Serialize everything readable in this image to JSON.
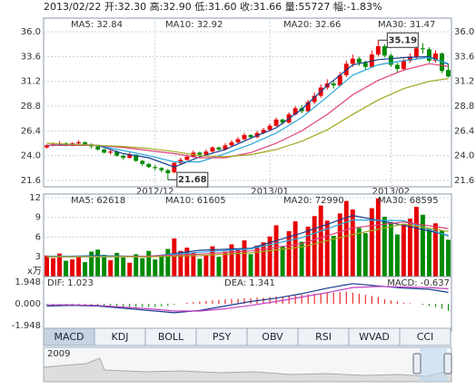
{
  "header": "2013/02/22 开:32.30 高:32.90 低:31.60 收:31.66 量:55727 幅:-1.83%",
  "chart_data": [
    {
      "type": "candlestick",
      "categories": [
        null,
        null,
        null,
        null,
        null,
        null,
        null,
        null,
        null,
        null,
        null,
        null,
        null,
        null,
        null,
        null,
        null,
        "2012/12",
        null,
        null,
        null,
        null,
        null,
        null,
        null,
        null,
        null,
        null,
        null,
        null,
        null,
        null,
        null,
        null,
        null,
        "2013/01",
        null,
        null,
        null,
        null,
        null,
        null,
        null,
        null,
        null,
        null,
        null,
        null,
        null,
        null,
        null,
        null,
        null,
        null,
        "2013/02",
        null,
        null,
        null,
        null,
        null,
        null,
        null,
        null,
        null
      ],
      "open": [
        24.8,
        25.0,
        25.1,
        25.2,
        25.0,
        25.2,
        25.3,
        25.1,
        24.9,
        24.6,
        24.3,
        24.4,
        24.0,
        23.8,
        24.1,
        23.5,
        23.2,
        22.9,
        22.8,
        22.6,
        22.4,
        23.3,
        23.6,
        23.9,
        24.3,
        24.1,
        24.4,
        24.8,
        24.6,
        25.0,
        25.3,
        25.6,
        26.0,
        25.8,
        26.2,
        26.5,
        26.9,
        27.5,
        27.2,
        28.0,
        28.6,
        28.3,
        29.2,
        29.8,
        30.6,
        31.0,
        30.8,
        31.8,
        32.9,
        33.4,
        33.0,
        32.6,
        33.8,
        34.6,
        33.7,
        32.8,
        32.4,
        33.2,
        33.6,
        34.4,
        34.3,
        33.2,
        33.9,
        32.3
      ],
      "high": [
        25.1,
        25.3,
        25.4,
        25.3,
        25.3,
        25.5,
        25.4,
        25.2,
        25.0,
        24.7,
        24.6,
        24.5,
        24.1,
        24.3,
        24.1,
        23.6,
        23.3,
        23.1,
        22.9,
        22.7,
        23.4,
        23.8,
        24.1,
        24.5,
        24.4,
        24.6,
        24.9,
        24.9,
        25.2,
        25.5,
        25.8,
        26.2,
        26.1,
        26.4,
        26.7,
        27.1,
        27.7,
        27.6,
        28.2,
        28.8,
        28.9,
        29.4,
        30.1,
        30.9,
        31.4,
        31.3,
        32.1,
        33.2,
        33.8,
        33.6,
        33.2,
        34.2,
        35.19,
        34.8,
        33.9,
        33.0,
        33.4,
        33.9,
        34.8,
        34.9,
        34.5,
        34.2,
        34.0,
        32.9
      ],
      "low": [
        24.7,
        24.9,
        25.0,
        24.9,
        24.9,
        25.1,
        25.0,
        24.7,
        24.5,
        24.2,
        24.1,
        23.9,
        23.6,
        23.7,
        23.4,
        23.0,
        22.8,
        22.6,
        22.4,
        21.68,
        22.3,
        23.1,
        23.5,
        23.8,
        23.9,
        24.0,
        24.3,
        24.5,
        24.5,
        24.9,
        25.2,
        25.5,
        25.6,
        25.7,
        26.1,
        26.4,
        26.8,
        27.0,
        27.1,
        27.9,
        28.1,
        28.2,
        29.0,
        29.6,
        30.4,
        30.5,
        30.7,
        31.6,
        32.6,
        32.7,
        32.3,
        32.5,
        33.6,
        33.5,
        32.6,
        32.1,
        32.2,
        33.0,
        33.4,
        33.9,
        33.0,
        33.0,
        32.0,
        31.6
      ],
      "close": [
        25.0,
        25.1,
        25.2,
        25.0,
        25.2,
        25.3,
        25.1,
        24.9,
        24.6,
        24.3,
        24.4,
        24.0,
        23.8,
        24.1,
        23.5,
        23.2,
        22.9,
        22.8,
        22.6,
        22.3,
        23.3,
        23.6,
        23.9,
        24.3,
        24.1,
        24.4,
        24.8,
        24.6,
        25.0,
        25.3,
        25.6,
        26.0,
        25.8,
        26.2,
        26.5,
        26.9,
        27.5,
        27.2,
        28.0,
        28.6,
        28.3,
        29.2,
        29.8,
        30.6,
        31.0,
        30.8,
        31.8,
        32.9,
        33.4,
        33.0,
        32.6,
        33.8,
        34.6,
        33.7,
        32.8,
        32.4,
        33.2,
        33.6,
        34.4,
        34.3,
        33.2,
        33.9,
        32.2,
        31.66
      ],
      "up_color": "#e60000",
      "down_color": "#008a00",
      "ylim": [
        20.99,
        37.32
      ],
      "yticks": [
        {
          "value": 36,
          "label": "36.0"
        },
        {
          "value": 33.6,
          "label": "33.6"
        },
        {
          "value": 31.2,
          "label": "31.2"
        },
        {
          "value": 28.8,
          "label": "28.8"
        },
        {
          "value": 26.4,
          "label": "26.4"
        },
        {
          "value": 24,
          "label": "24.0"
        },
        {
          "value": 21.6,
          "label": "21.6"
        }
      ],
      "right_axis": true,
      "grid": true,
      "series": [
        {
          "name": "MA5: 32.84",
          "color": "#1a3d8f",
          "x": [
            0,
            4,
            8,
            12,
            16,
            20,
            24,
            28,
            32,
            36,
            40,
            44,
            48,
            52,
            56,
            60,
            63
          ],
          "values": [
            25.0,
            25.1,
            25.0,
            24.2,
            23.8,
            22.9,
            23.9,
            24.6,
            25.7,
            26.7,
            28.5,
            30.8,
            32.8,
            33.3,
            33.5,
            33.6,
            32.84
          ]
        },
        {
          "name": "MA10: 32.92",
          "color": "#2aa7d8",
          "x": [
            0,
            4,
            8,
            12,
            16,
            20,
            24,
            28,
            32,
            36,
            40,
            44,
            48,
            52,
            56,
            60,
            63
          ],
          "values": [
            25.0,
            25.0,
            25.0,
            24.5,
            24.0,
            23.4,
            23.4,
            24.2,
            25.1,
            26.2,
            27.7,
            29.7,
            31.8,
            32.8,
            33.2,
            33.5,
            32.92
          ]
        },
        {
          "name": "MA20: 32.66",
          "color": "#e0407a",
          "x": [
            0,
            4,
            8,
            12,
            16,
            20,
            24,
            28,
            32,
            36,
            40,
            44,
            48,
            52,
            56,
            60,
            63
          ],
          "values": [
            25.0,
            25.0,
            25.0,
            24.8,
            24.5,
            24.2,
            23.8,
            23.8,
            24.3,
            25.2,
            26.4,
            28.0,
            29.9,
            31.3,
            32.3,
            32.9,
            32.66
          ]
        },
        {
          "name": "MA30: 31.47",
          "color": "#a3a820",
          "x": [
            0,
            4,
            8,
            12,
            16,
            20,
            24,
            28,
            32,
            36,
            40,
            44,
            48,
            52,
            56,
            60,
            63
          ],
          "values": [
            25.2,
            25.1,
            25.0,
            24.9,
            24.7,
            24.4,
            24.0,
            23.9,
            24.1,
            24.6,
            25.4,
            26.5,
            28.0,
            29.4,
            30.5,
            31.2,
            31.47
          ]
        }
      ],
      "annotations": [
        {
          "x": 52,
          "value": 35.19
        },
        {
          "x": 19,
          "value": 21.68
        }
      ]
    },
    {
      "type": "bar",
      "unit": "x万",
      "values": [
        3.2,
        2.8,
        3.5,
        2.4,
        2.6,
        3.0,
        2.2,
        3.8,
        4.1,
        3.3,
        2.5,
        3.6,
        2.9,
        2.1,
        3.4,
        2.8,
        3.9,
        2.6,
        3.1,
        4.2,
        5.8,
        3.9,
        4.4,
        3.6,
        2.7,
        3.2,
        4.6,
        3.0,
        3.8,
        4.9,
        4.1,
        5.5,
        3.4,
        4.7,
        5.2,
        6.1,
        7.8,
        4.6,
        6.9,
        8.4,
        5.3,
        7.6,
        9.2,
        10.8,
        8.5,
        6.2,
        9.6,
        11.5,
        10.2,
        7.4,
        6.6,
        10.4,
        11.9,
        9.1,
        8.3,
        6.4,
        7.9,
        8.8,
        10.6,
        9.4,
        7.2,
        8.1,
        7.0,
        5.6
      ],
      "ylim": [
        0,
        12.55
      ],
      "yticks": [
        12,
        9,
        6,
        3
      ],
      "grid": true,
      "series": [
        {
          "name": "MA5: 62618",
          "color": "#1a3d8f",
          "x": [
            0,
            8,
            16,
            24,
            32,
            40,
            48,
            56,
            63
          ],
          "values": [
            3.0,
            3.2,
            3.0,
            4.0,
            4.3,
            6.6,
            9.3,
            7.8,
            6.26
          ]
        },
        {
          "name": "MA10: 61605",
          "color": "#2aa7d8",
          "x": [
            0,
            8,
            16,
            24,
            32,
            40,
            48,
            56,
            63
          ],
          "values": [
            3.1,
            3.1,
            3.1,
            3.7,
            4.2,
            5.9,
            8.6,
            8.5,
            6.16
          ]
        },
        {
          "name": "MA20: 72990",
          "color": "#e0407a",
          "x": [
            0,
            8,
            16,
            24,
            32,
            40,
            48,
            56,
            63
          ],
          "values": [
            3.0,
            3.0,
            3.1,
            3.4,
            3.9,
            5.0,
            7.4,
            8.3,
            7.3
          ]
        },
        {
          "name": "MA30: 68595",
          "color": "#a3a820",
          "x": [
            0,
            8,
            16,
            24,
            32,
            40,
            48,
            56,
            63
          ],
          "values": [
            3.0,
            3.0,
            3.0,
            3.2,
            3.6,
            4.5,
            6.4,
            8.0,
            6.86
          ]
        }
      ]
    },
    {
      "type": "bar",
      "bar_name": "MACD: -0.637",
      "values": [
        -0.1,
        -0.1,
        -0.05,
        -0.1,
        -0.1,
        -0.1,
        -0.1,
        -0.15,
        -0.15,
        -0.2,
        -0.2,
        -0.25,
        -0.25,
        -0.3,
        -0.3,
        -0.3,
        -0.3,
        -0.3,
        -0.25,
        -0.2,
        -0.1,
        0.0,
        0.1,
        0.15,
        0.2,
        0.25,
        0.3,
        0.35,
        0.4,
        0.45,
        0.45,
        0.5,
        0.5,
        0.55,
        0.55,
        0.6,
        0.65,
        0.65,
        0.7,
        0.75,
        0.8,
        0.85,
        0.9,
        0.95,
        1.0,
        1.0,
        1.05,
        1.1,
        1.0,
        0.9,
        0.8,
        0.7,
        0.6,
        0.4,
        0.3,
        0.2,
        0.1,
        0.05,
        0.0,
        -0.1,
        -0.2,
        -0.3,
        -0.45,
        -0.637
      ],
      "ylim": [
        -2.435,
        2.435
      ],
      "yticks": [
        {
          "value": 1.948,
          "label": "1.948"
        },
        {
          "value": 0,
          "label": "0.000"
        },
        {
          "value": -1.948,
          "label": "-1.948"
        }
      ],
      "grid": false,
      "series": [
        {
          "name": "DIF: 1.023",
          "color": "#1a3d8f",
          "x": [
            0,
            4,
            8,
            12,
            16,
            20,
            24,
            28,
            32,
            36,
            40,
            44,
            48,
            52,
            56,
            60,
            63
          ],
          "values": [
            -0.2,
            -0.15,
            -0.2,
            -0.4,
            -0.6,
            -0.8,
            -0.6,
            -0.2,
            0.2,
            0.5,
            0.9,
            1.4,
            1.8,
            1.6,
            1.4,
            1.3,
            1.023
          ]
        },
        {
          "name": "DEA: 1.341",
          "color": "#c040c0",
          "x": [
            0,
            4,
            8,
            12,
            16,
            20,
            24,
            28,
            32,
            36,
            40,
            44,
            48,
            52,
            56,
            60,
            63
          ],
          "values": [
            -0.1,
            -0.1,
            -0.15,
            -0.3,
            -0.45,
            -0.65,
            -0.65,
            -0.45,
            -0.15,
            0.2,
            0.6,
            1.0,
            1.45,
            1.55,
            1.5,
            1.45,
            1.341
          ]
        }
      ]
    }
  ],
  "tabs": [
    "MACD",
    "KDJ",
    "BOLL",
    "PSY",
    "OBV",
    "RSI",
    "WVAD",
    "CCI"
  ],
  "navigator": {
    "label": "2009"
  }
}
